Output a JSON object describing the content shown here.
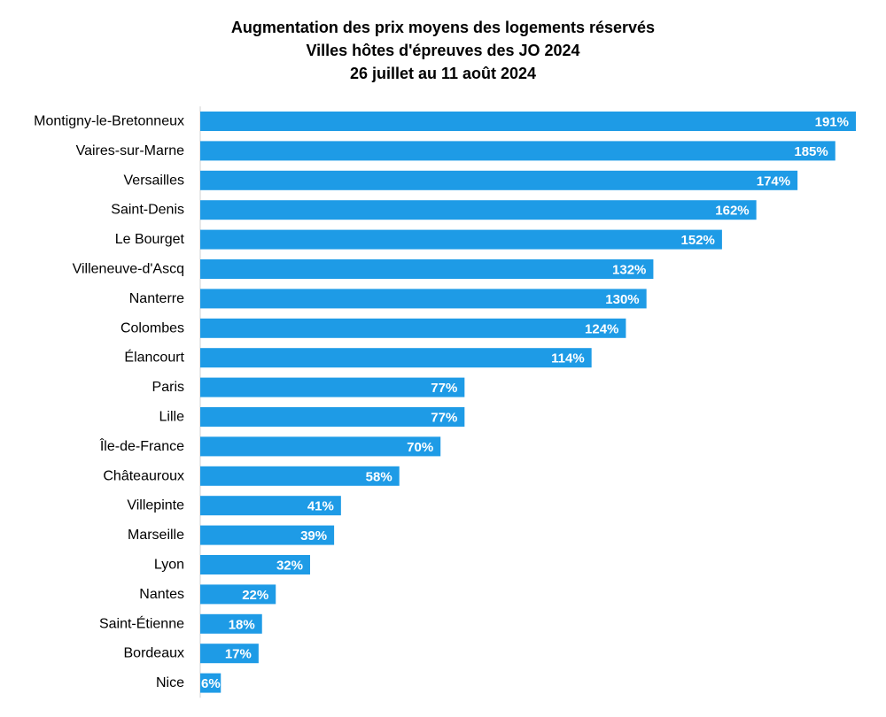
{
  "chart_data": {
    "type": "bar",
    "orientation": "horizontal",
    "title": [
      "Augmentation des prix moyens des logements réservés",
      "Villes hôtes d'épreuves des JO 2024",
      "26 juillet au 11 août 2024"
    ],
    "categories": [
      "Montigny-le-Bretonneux",
      "Vaires-sur-Marne",
      "Versailles",
      "Saint-Denis",
      "Le Bourget",
      "Villeneuve-d'Ascq",
      "Nanterre",
      "Colombes",
      "Élancourt",
      "Paris",
      "Lille",
      "Île-de-France",
      "Châteauroux",
      "Villepinte",
      "Marseille",
      "Lyon",
      "Nantes",
      "Saint-Étienne",
      "Bordeaux",
      "Nice"
    ],
    "values": [
      191,
      185,
      174,
      162,
      152,
      132,
      130,
      124,
      114,
      77,
      77,
      70,
      58,
      41,
      39,
      32,
      22,
      18,
      17,
      6
    ],
    "value_labels": [
      "191%",
      "185%",
      "174%",
      "162%",
      "152%",
      "132%",
      "130%",
      "124%",
      "114%",
      "77%",
      "77%",
      "70%",
      "58%",
      "41%",
      "39%",
      "32%",
      "22%",
      "18%",
      "17%",
      "6%"
    ],
    "xlim": [
      0,
      191
    ],
    "xlabel": "",
    "ylabel": "",
    "grid": false,
    "legend": "none",
    "bar_color": "#1E9BE6",
    "axis_color": "#D0D0D0"
  }
}
